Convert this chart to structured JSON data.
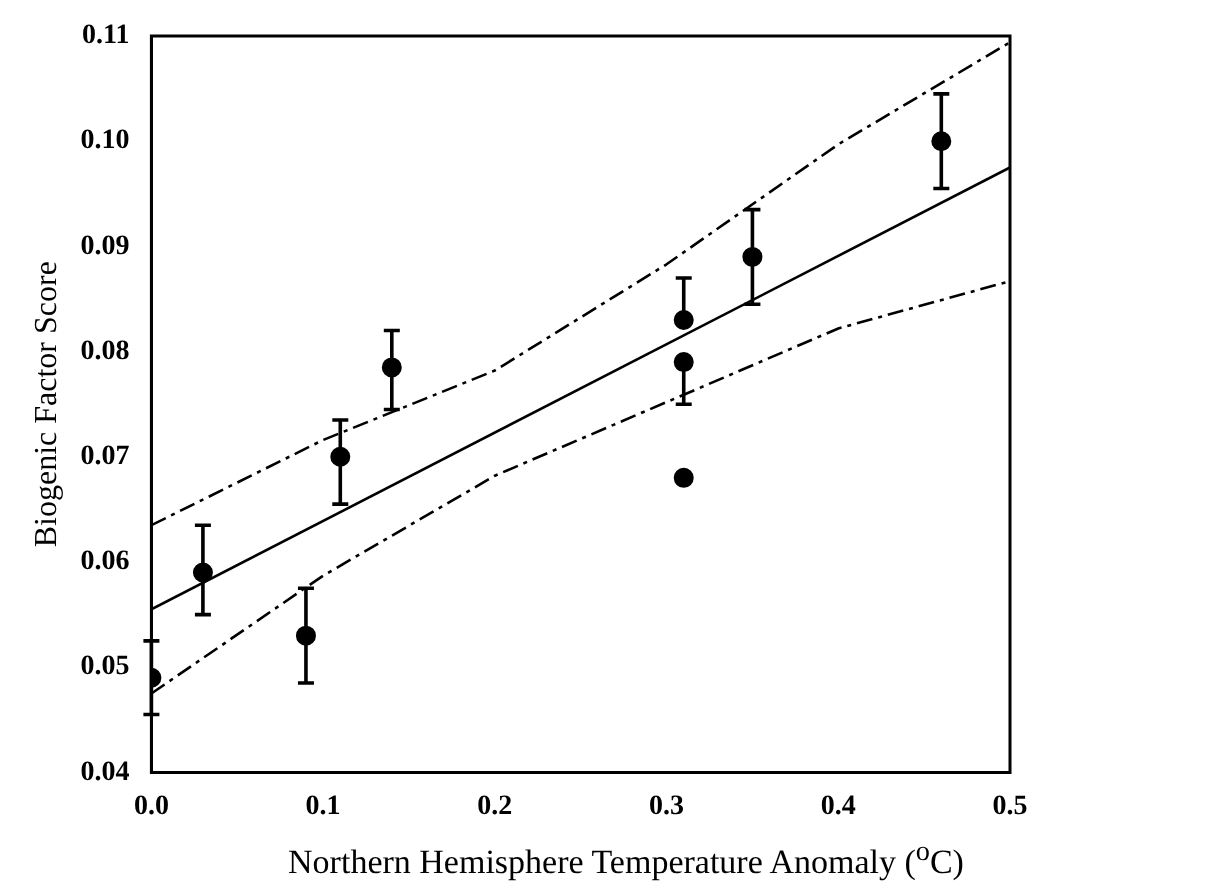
{
  "chart_data": {
    "type": "scatter",
    "xlabel": "Northern Hemisphere Temperature Anomaly ($^{o}$C)",
    "ylabel": "Biogenic Factor Score",
    "xlim": [
      0,
      0.5
    ],
    "xticks": [
      {
        "value": 0,
        "label": "0.0"
      },
      0.1,
      0.2,
      0.3,
      0.4,
      0.5
    ],
    "ylim": [
      0.04,
      0.11
    ],
    "yticks": [
      0.04,
      0.05,
      0.06,
      0.07,
      0.08,
      0.09,
      {
        "value": 0.1,
        "label": "0.10"
      },
      0.11
    ],
    "grid": false,
    "legend": false,
    "marker": "circle",
    "series": [
      {
        "color": "#000000",
        "x": [
          0.0,
          0.03,
          0.09,
          0.11,
          0.14,
          0.31,
          0.31,
          0.31,
          0.35,
          0.46
        ],
        "values": [
          0.049,
          0.059,
          0.053,
          0.07,
          0.0785,
          0.083,
          0.079,
          0.068,
          0.089,
          0.1
        ],
        "errors": [
          [
            0.0455,
            0.0525
          ],
          [
            0.055,
            0.0635
          ],
          [
            0.0485,
            0.0575
          ],
          [
            0.0655,
            0.0735
          ],
          [
            0.0745,
            0.082
          ],
          [
            0.083,
            0.087
          ],
          [
            0.075,
            0.079
          ],
          null,
          [
            0.0845,
            0.0935
          ],
          [
            0.0955,
            0.1045
          ]
        ]
      },
      {
        "type": "line",
        "color": "#000000",
        "line_style": "solid",
        "marker": "none",
        "x": [
          0,
          0.5
        ],
        "values": [
          0.0555,
          0.0975
        ]
      },
      {
        "type": "line",
        "color": "#000000",
        "line_style": "dashed",
        "marker": "none",
        "x": [
          0,
          0.1,
          0.2,
          0.3,
          0.4,
          0.5
        ],
        "values": [
          0.0635,
          0.0716,
          0.0782,
          0.0883,
          0.0997,
          0.1094
        ]
      },
      {
        "type": "line",
        "color": "#000000",
        "line_style": "dashed",
        "marker": "none",
        "x": [
          0,
          0.1,
          0.2,
          0.3,
          0.4,
          0.5
        ],
        "values": [
          0.0475,
          0.0587,
          0.0682,
          0.0752,
          0.0822,
          0.0867
        ]
      }
    ]
  }
}
